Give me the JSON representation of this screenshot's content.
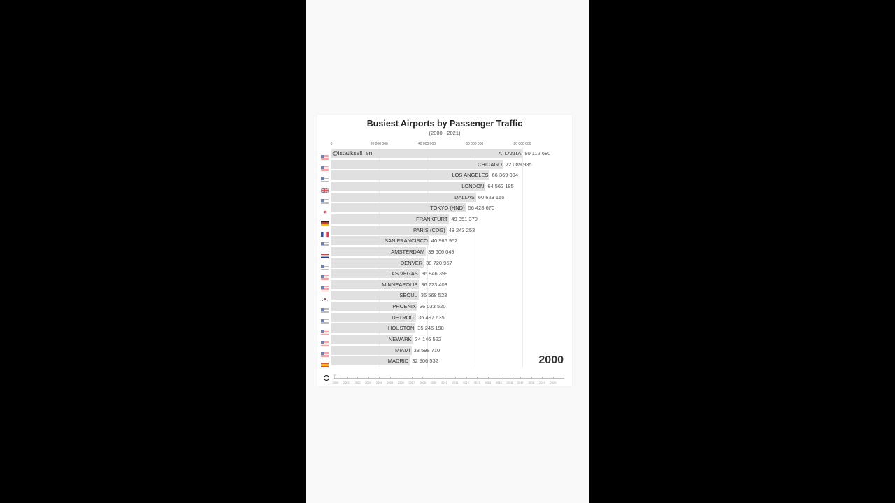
{
  "chart_data": {
    "type": "bar",
    "orientation": "horizontal",
    "title": "Busiest Airports by Passenger Traffic",
    "subtitle": "(2000 - 2021)",
    "current_year": "2000",
    "watermark": "@istatiksell_en",
    "xlabel": "",
    "ylabel": "",
    "xlim": [
      0,
      80000000
    ],
    "x_ticks": [
      "0",
      "20 000 000",
      "40 000 000",
      "60 000 000",
      "80 000 000"
    ],
    "grid": true,
    "categories": [
      "ATLANTA",
      "CHICAGO",
      "LOS ANGELES",
      "LONDON",
      "DALLAS",
      "TOKYO (HND)",
      "FRANKFURT",
      "PARIS (CDG)",
      "SAN FRANCISCO",
      "AMSTERDAM",
      "DENVER",
      "LAS VEGAS",
      "MINNEAPOLIS",
      "SEOUL",
      "PHOENIX",
      "DETROIT",
      "HOUSTON",
      "NEWARK",
      "MIAMI",
      "MADRID"
    ],
    "values": [
      80112680,
      72089985,
      66369094,
      64562185,
      60623155,
      56428670,
      49351379,
      48243253,
      40966952,
      39606049,
      38720967,
      36846399,
      36723403,
      36568523,
      36033520,
      35497635,
      35246198,
      34146522,
      33598710,
      32906532
    ],
    "value_labels": [
      "80 112 680",
      "72 089 985",
      "66 369 094",
      "64 562 185",
      "60 623 155",
      "56 428 670",
      "49 351 379",
      "48 243 253",
      "40 966 952",
      "39 606 049",
      "38 720 967",
      "36 846 399",
      "36 723 403",
      "36 568 523",
      "36 033 520",
      "35 497 635",
      "35 246 198",
      "34 146 522",
      "33 598 710",
      "32 906 532"
    ],
    "flags": [
      "us",
      "us",
      "us",
      "gb",
      "us",
      "jp",
      "de",
      "fr",
      "us",
      "nl",
      "us",
      "us",
      "us",
      "kr",
      "us",
      "us",
      "us",
      "us",
      "us",
      "es"
    ],
    "timeline_years": [
      "2000",
      "2001",
      "2002",
      "2003",
      "2004",
      "2005",
      "2006",
      "2007",
      "2008",
      "2009",
      "2010",
      "2011",
      "2012",
      "2013",
      "2014",
      "2015",
      "2016",
      "2017",
      "2018",
      "2019",
      "2020"
    ]
  },
  "colors": {
    "bar": "#e0e0e0",
    "background": "#ffffff",
    "text": "#333333"
  },
  "controls": {
    "play_icon": "play-pause-button"
  }
}
